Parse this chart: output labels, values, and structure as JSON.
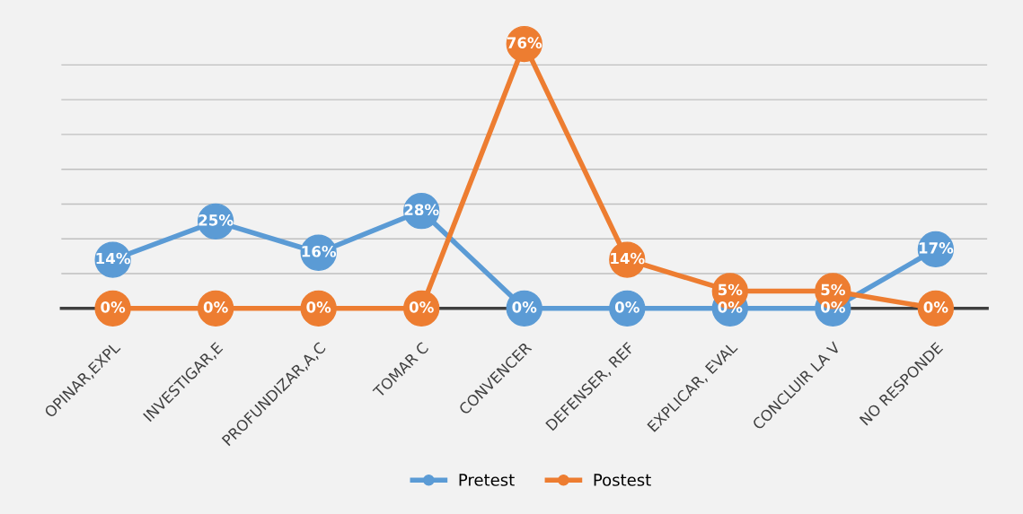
{
  "chart_data": {
    "type": "line",
    "categories": [
      "OPINAR,EXPL",
      "INVESTIGAR,E",
      "PROFUNDIZAR,A,C",
      "TOMAR C",
      "CONVENCER",
      "DEFENSER, REF",
      "EXPLICAR, EVAL",
      "CONCLUIR LA V",
      "NO RESPONDE"
    ],
    "series": [
      {
        "name": "Pretest",
        "color": "#5b9bd5",
        "values": [
          14,
          25,
          16,
          28,
          0,
          0,
          0,
          0,
          17
        ],
        "value_labels": [
          "14%",
          "25%",
          "16%",
          "28%",
          "0%",
          "0%",
          "0%",
          "0%",
          "17%"
        ]
      },
      {
        "name": "Postest",
        "color": "#ed7d31",
        "values": [
          0,
          0,
          0,
          0,
          76,
          14,
          5,
          5,
          0
        ],
        "value_labels": [
          "0%",
          "0%",
          "0%",
          "0%",
          "76%",
          "14%",
          "5%",
          "5%",
          "0%"
        ]
      }
    ],
    "tick_labels": "x",
    "grid": "y",
    "legend": "bottom",
    "marker": "circle",
    "line_style": "solid"
  }
}
